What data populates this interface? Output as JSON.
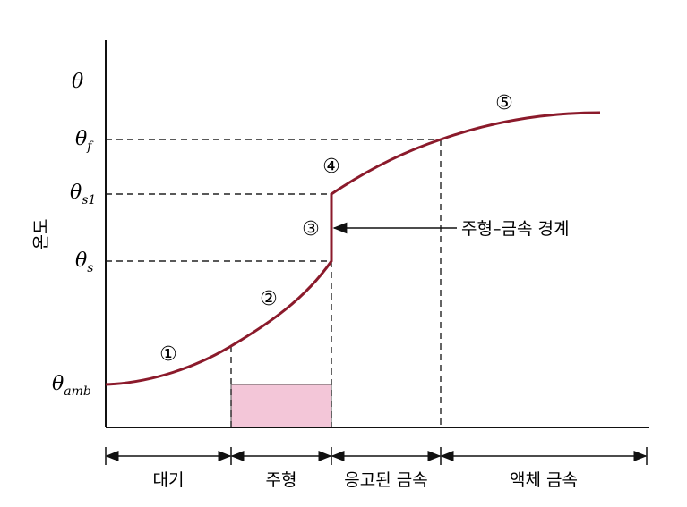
{
  "axis": {
    "y_symbol": "θ",
    "y_title": "온도"
  },
  "levels": [
    {
      "symbol": "θ",
      "sub": "f"
    },
    {
      "symbol": "θ",
      "sub": "s1"
    },
    {
      "symbol": "θ",
      "sub": "s"
    },
    {
      "symbol": "θ",
      "sub": "amb"
    }
  ],
  "stages": [
    "①",
    "②",
    "③",
    "④",
    "⑤"
  ],
  "annotation": "주형–금속 경계",
  "regions": [
    "대기",
    "주형",
    "응고된 금속",
    "액체 금속"
  ]
}
